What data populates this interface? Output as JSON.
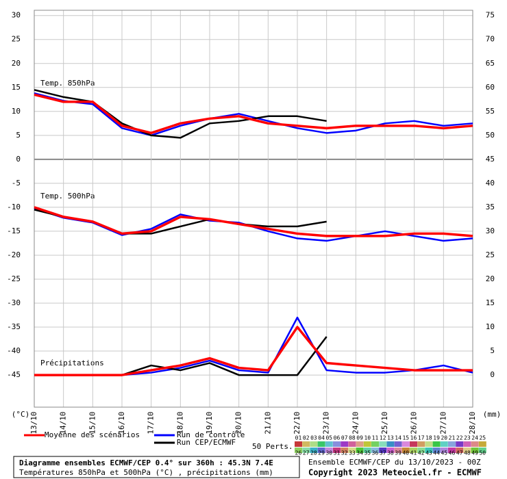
{
  "chart_data": {
    "type": "line",
    "x_unit_left": "(°C)",
    "x_unit_right": "(mm)",
    "panel_labels": [
      "Temp. 850hPa",
      "Temp. 500hPa",
      "Précipitations"
    ],
    "categories": [
      "13/10",
      "14/10",
      "15/10",
      "16/10",
      "17/10",
      "18/10",
      "19/10",
      "20/10",
      "21/10",
      "22/10",
      "23/10",
      "24/10",
      "25/10",
      "26/10",
      "27/10",
      "28/10"
    ],
    "ylim": [
      -51.7,
      31.1
    ],
    "yticks": [
      30,
      25,
      20,
      15,
      10,
      5,
      0,
      -5,
      -10,
      -15,
      -20,
      -25,
      -30,
      -35,
      -40,
      -45
    ],
    "y2lim": [
      -6.7,
      76.1
    ],
    "y2ticks": [
      75,
      70,
      65,
      60,
      55,
      50,
      45,
      40,
      35,
      30,
      25,
      20,
      15,
      10,
      5,
      0
    ],
    "grid": true,
    "series": [
      {
        "name": "Moyenne des scénarios",
        "color": "#ff0000",
        "values": [
          13.5,
          12,
          12,
          7,
          5.5,
          7.5,
          8.5,
          9,
          7.5,
          7,
          6.5,
          7,
          7,
          7,
          6.5,
          7
        ]
      },
      {
        "name": "Run de contrôle",
        "color": "#0000ff",
        "values": [
          13.8,
          12.2,
          11.5,
          6.5,
          5,
          7,
          8.5,
          9.5,
          8,
          6.5,
          5.5,
          6,
          7.5,
          8,
          7,
          7.5
        ]
      },
      {
        "name": "Run CEP/ECMWF",
        "color": "#000000",
        "values": [
          14.5,
          13,
          12,
          7.5,
          5,
          4.5,
          7.5,
          8,
          9,
          9,
          8,
          null,
          null,
          null,
          null,
          null
        ]
      },
      {
        "name": "Moyenne des scénarios",
        "color": "#ff0000",
        "values": [
          -10,
          -12,
          -13,
          -15.5,
          -15,
          -12,
          -12.5,
          -13.5,
          -14.5,
          -15.5,
          -16,
          -16,
          -16,
          -15.5,
          -15.5,
          -16
        ]
      },
      {
        "name": "Run de contrôle",
        "color": "#0000ff",
        "values": [
          -10.2,
          -12.2,
          -13.2,
          -15.8,
          -14.5,
          -11.5,
          -12.8,
          -13.2,
          -15,
          -16.5,
          -17,
          -16,
          -15,
          -16,
          -17,
          -16.5
        ]
      },
      {
        "name": "Run CEP/ECMWF",
        "color": "#000000",
        "values": [
          -10.5,
          -12,
          -13,
          -15.5,
          -15.5,
          -14,
          -12.5,
          -13.5,
          -14,
          -14,
          -13,
          null,
          null,
          null,
          null,
          null
        ]
      },
      {
        "name": "Moyenne des scénarios",
        "color": "#ff0000",
        "axis": "y2",
        "values": [
          0,
          0,
          0,
          0,
          1,
          2,
          3.5,
          1.5,
          1,
          10,
          2.5,
          2,
          1.5,
          1,
          1,
          1
        ]
      },
      {
        "name": "Run de contrôle",
        "color": "#0000ff",
        "axis": "y2",
        "values": [
          0,
          0,
          0,
          0,
          0.5,
          1.5,
          3,
          1,
          0.5,
          12,
          1,
          0.5,
          0.5,
          1,
          2,
          0.5
        ]
      },
      {
        "name": "Run CEP/ECMWF",
        "color": "#000000",
        "axis": "y2",
        "values": [
          0,
          0,
          0,
          0,
          2,
          1,
          2.5,
          0,
          0,
          0,
          8,
          null,
          null,
          null,
          null,
          null
        ]
      }
    ],
    "legend_count": "50 Perts.",
    "perturbations": [
      "01",
      "02",
      "03",
      "04",
      "05",
      "06",
      "07",
      "08",
      "09",
      "10",
      "11",
      "12",
      "13",
      "14",
      "15",
      "16",
      "17",
      "18",
      "19",
      "20",
      "21",
      "22",
      "23",
      "24",
      "25",
      "26",
      "27",
      "28",
      "29",
      "30",
      "31",
      "32",
      "33",
      "34",
      "35",
      "36",
      "37",
      "38",
      "39",
      "40",
      "41",
      "42",
      "43",
      "44",
      "45",
      "46",
      "47",
      "48",
      "49",
      "50"
    ],
    "footer_title": "Diagramme ensembles ECMWF/CEP 0.4° sur 360h : 45.3N 7.4E",
    "footer_subtitle": "Températures 850hPa et 500hPa (°C) , précipitations (mm)",
    "run_info": "Ensemble ECMWF/CEP du 13/10/2023 - 00Z",
    "copyright": "Copyright 2023 Meteociel.fr - ECMWF"
  }
}
